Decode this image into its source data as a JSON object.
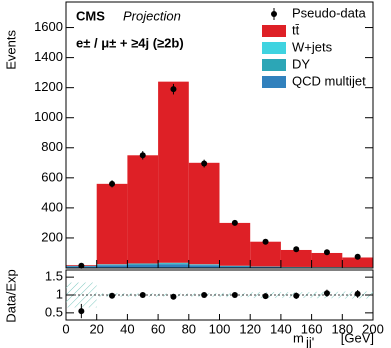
{
  "chart_data": {
    "type": "stacked_histogram",
    "experiment": "CMS",
    "status": "Projection",
    "channel": "e± / μ± + ≥4j (≥2b)",
    "y_label": "Events",
    "x_label": "m",
    "x_label_sub": "jj'",
    "x_label_unit": "[GeV]",
    "bins": [
      0,
      20,
      40,
      60,
      80,
      100,
      120,
      140,
      160,
      180,
      200
    ],
    "xlim": [
      0,
      200
    ],
    "xticks": [
      0,
      20,
      40,
      60,
      80,
      100,
      120,
      140,
      160,
      180,
      200
    ],
    "ylim": [
      0,
      1770
    ],
    "yticks": [
      200,
      400,
      600,
      800,
      1000,
      1200,
      1400,
      1600
    ],
    "series": [
      {
        "name": "QCD multijet",
        "color": "#3181bd",
        "values": [
          12,
          18,
          22,
          25,
          18,
          10,
          7,
          5,
          4,
          3
        ]
      },
      {
        "name": "DY",
        "color": "#2ca6b6",
        "values": [
          2,
          4,
          5,
          6,
          4,
          3,
          2,
          1,
          1,
          1
        ]
      },
      {
        "name": "W+jets",
        "color": "#3fd3e0",
        "values": [
          1,
          3,
          3,
          4,
          3,
          2,
          1,
          1,
          1,
          1
        ]
      },
      {
        "name": "tt̄",
        "color": "#de2026",
        "values": [
          5,
          535,
          720,
          1205,
          675,
          285,
          165,
          113,
          94,
          65
        ]
      }
    ],
    "data": {
      "name": "Pseudo-data",
      "color": "#000000",
      "values": [
        15,
        560,
        750,
        1190,
        695,
        300,
        175,
        125,
        105,
        75
      ],
      "errors": [
        6,
        24,
        28,
        35,
        26,
        17,
        13,
        11,
        10,
        9
      ]
    },
    "ratio": {
      "y_label": "Data/Exp",
      "ylim": [
        0.3,
        1.7
      ],
      "yticks": [
        0.5,
        1,
        1.5
      ],
      "values": [
        0.55,
        0.98,
        1.0,
        0.95,
        1.0,
        1.0,
        0.97,
        0.98,
        1.05,
        1.03
      ],
      "errors": [
        0.2,
        0.04,
        0.04,
        0.03,
        0.04,
        0.06,
        0.07,
        0.09,
        0.1,
        0.11
      ],
      "uncertainty": [
        0.35,
        0.05,
        0.05,
        0.04,
        0.05,
        0.06,
        0.08,
        0.08,
        0.09,
        0.1
      ]
    }
  }
}
